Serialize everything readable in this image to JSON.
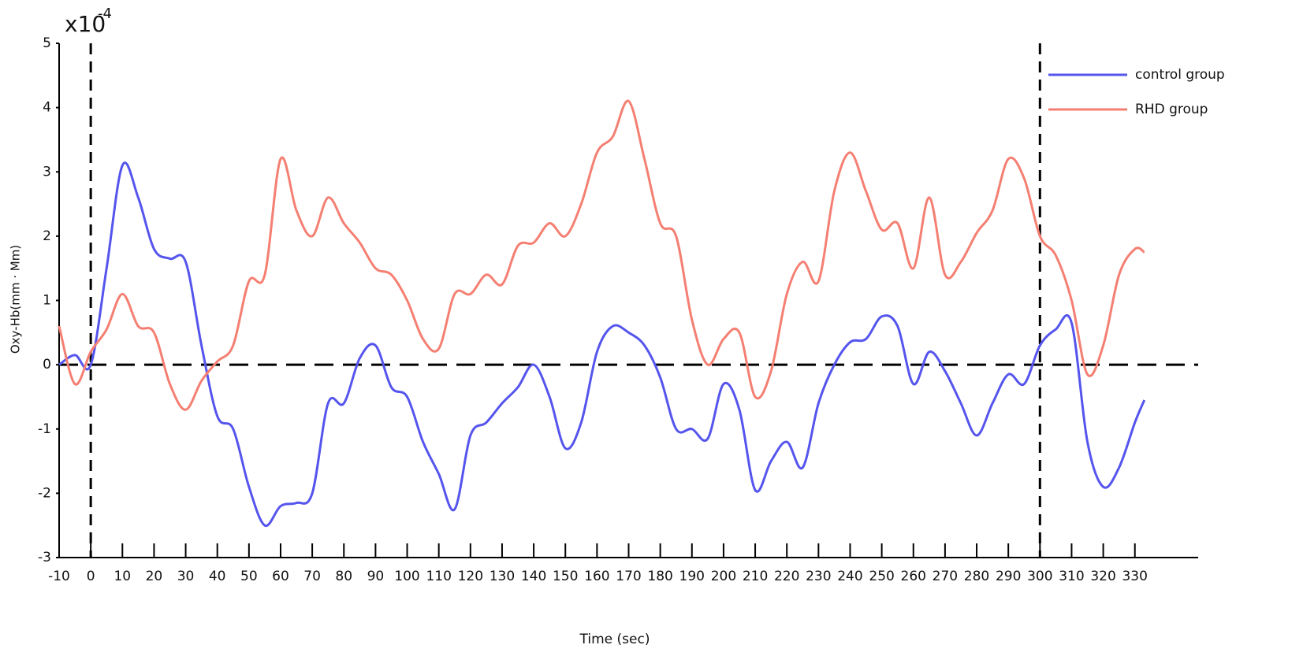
{
  "chart_data": {
    "type": "line",
    "xlabel": "Time (sec)",
    "ylabel": "Oxy-Hb(mm · Mm)",
    "y_multiplier": {
      "base": "x10",
      "exponent": "-4"
    },
    "x": [
      -10,
      -5,
      0,
      5,
      10,
      15,
      20,
      25,
      30,
      35,
      40,
      45,
      50,
      55,
      60,
      65,
      70,
      75,
      80,
      85,
      90,
      95,
      100,
      105,
      110,
      115,
      120,
      125,
      130,
      135,
      140,
      145,
      150,
      155,
      160,
      165,
      170,
      175,
      180,
      185,
      190,
      195,
      200,
      205,
      210,
      215,
      220,
      225,
      230,
      235,
      240,
      245,
      250,
      255,
      260,
      265,
      270,
      275,
      280,
      285,
      290,
      295,
      300,
      305,
      310,
      315,
      320,
      325,
      330,
      333
    ],
    "series": [
      {
        "name": "control group",
        "color": "#5555ee",
        "values": [
          0.0,
          0.15,
          0.0,
          1.5,
          3.1,
          2.6,
          1.8,
          1.65,
          1.6,
          0.3,
          -0.8,
          -1.0,
          -1.9,
          -2.5,
          -2.2,
          -2.15,
          -2.0,
          -0.6,
          -0.6,
          0.1,
          0.3,
          -0.35,
          -0.5,
          -1.2,
          -1.7,
          -2.25,
          -1.1,
          -0.9,
          -0.6,
          -0.35,
          0.0,
          -0.5,
          -1.3,
          -0.9,
          0.2,
          0.6,
          0.5,
          0.3,
          -0.2,
          -1.0,
          -1.0,
          -1.15,
          -0.3,
          -0.7,
          -1.95,
          -1.5,
          -1.2,
          -1.6,
          -0.6,
          0.0,
          0.35,
          0.4,
          0.75,
          0.6,
          -0.3,
          0.2,
          -0.1,
          -0.6,
          -1.1,
          -0.6,
          -0.15,
          -0.3,
          0.3,
          0.55,
          0.65,
          -1.2,
          -1.9,
          -1.6,
          -0.9,
          -0.55
        ]
      },
      {
        "name": "RHD group",
        "color": "#f47f72",
        "values": [
          0.6,
          -0.3,
          0.2,
          0.55,
          1.1,
          0.6,
          0.5,
          -0.3,
          -0.7,
          -0.25,
          0.05,
          0.3,
          1.3,
          1.4,
          3.2,
          2.4,
          2.0,
          2.6,
          2.2,
          1.9,
          1.5,
          1.4,
          1.0,
          0.4,
          0.25,
          1.1,
          1.1,
          1.4,
          1.25,
          1.85,
          1.9,
          2.2,
          2.0,
          2.5,
          3.3,
          3.55,
          4.1,
          3.2,
          2.2,
          2.0,
          0.7,
          0.0,
          0.4,
          0.5,
          -0.5,
          -0.1,
          1.1,
          1.6,
          1.3,
          2.7,
          3.3,
          2.7,
          2.1,
          2.2,
          1.5,
          2.6,
          1.4,
          1.6,
          2.05,
          2.4,
          3.2,
          2.9,
          2.0,
          1.7,
          1.0,
          -0.15,
          0.3,
          1.4,
          1.8,
          1.75
        ]
      }
    ],
    "xlim": [
      -10,
      350
    ],
    "ylim": [
      -3,
      5
    ],
    "xticks": [
      -10,
      0,
      10,
      20,
      30,
      40,
      50,
      60,
      70,
      80,
      90,
      100,
      110,
      120,
      130,
      140,
      150,
      160,
      170,
      180,
      190,
      200,
      210,
      220,
      230,
      240,
      250,
      260,
      270,
      280,
      290,
      300,
      310,
      320,
      330
    ],
    "yticks": [
      -3,
      -2,
      -1,
      0,
      1,
      2,
      3,
      4,
      5
    ],
    "vlines": [
      0,
      300
    ],
    "hlines": [
      0
    ],
    "legend": "top-right"
  }
}
